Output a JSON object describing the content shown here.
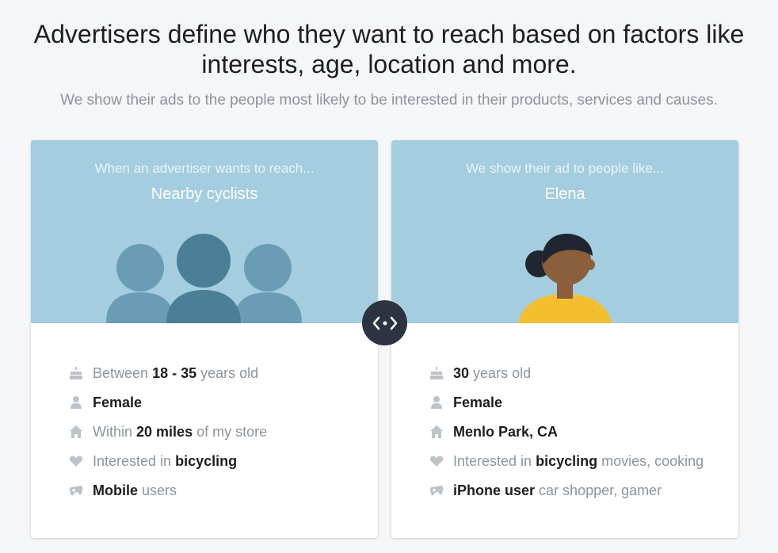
{
  "header": {
    "title": "Advertisers define who they want to reach based on factors like interests, age, location and more.",
    "subtitle": "We show their ads to the people most likely to be interested in their products, services and causes."
  },
  "colors": {
    "card_top": "#a4cddf",
    "person_light": "#6a9db5",
    "person_dark": "#4b7f97",
    "skin": "#8b5e3c",
    "hair": "#1f2631",
    "shirt": "#f3bf2e",
    "compare_button": "#2d3340"
  },
  "audience_card": {
    "kicker": "When an advertiser wants to reach...",
    "title": "Nearby cyclists",
    "facts": [
      {
        "icon": "cake-icon",
        "pre": "Between",
        "bold": "18 - 35",
        "post": "years old"
      },
      {
        "icon": "person-icon",
        "pre": "",
        "bold": "Female",
        "post": ""
      },
      {
        "icon": "home-icon",
        "pre": "Within",
        "bold": "20 miles",
        "post": "of my store"
      },
      {
        "icon": "heart-icon",
        "pre": "Interested in",
        "bold": "bicycling",
        "post": ""
      },
      {
        "icon": "gamepad-icon",
        "pre": "",
        "bold": "Mobile",
        "post": "users"
      }
    ]
  },
  "person_card": {
    "kicker": "We show their ad to people like...",
    "title": "Elena",
    "facts": [
      {
        "icon": "cake-icon",
        "pre": "",
        "bold": "30",
        "post": "years old"
      },
      {
        "icon": "person-icon",
        "pre": "",
        "bold": "Female",
        "post": ""
      },
      {
        "icon": "home-icon",
        "pre": "",
        "bold": "Menlo Park, CA",
        "post": ""
      },
      {
        "icon": "heart-icon",
        "pre": "Interested in",
        "bold": "bicycling",
        "post": "movies, cooking"
      },
      {
        "icon": "gamepad-icon",
        "pre": "",
        "bold": "iPhone user",
        "post": "car shopper, gamer"
      }
    ]
  },
  "compare_button": {
    "icon": "compare-arrows-icon"
  }
}
